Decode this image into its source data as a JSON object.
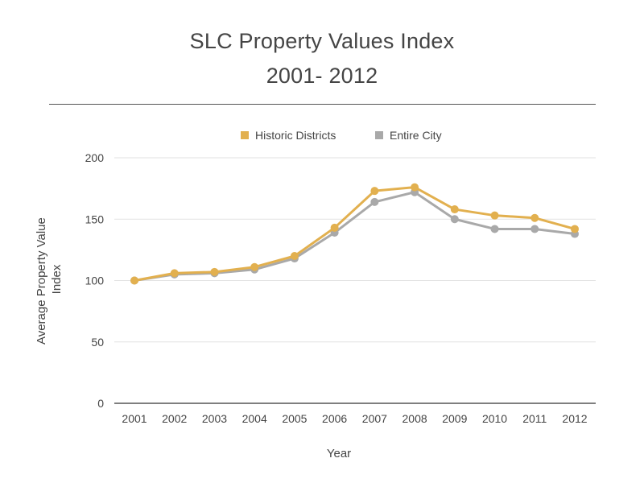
{
  "title": {
    "line1": "SLC Property Values Index",
    "line2": "2001- 2012"
  },
  "chart_data": {
    "type": "line",
    "title": "SLC Property Values Index 2001- 2012",
    "xlabel": "Year",
    "ylabel": "Average Property Value Index",
    "ylabel_lines": [
      "Average Property Value",
      "Index"
    ],
    "categories": [
      "2001",
      "2002",
      "2003",
      "2004",
      "2005",
      "2006",
      "2007",
      "2008",
      "2009",
      "2010",
      "2011",
      "2012"
    ],
    "series": [
      {
        "name": "Historic Districts",
        "color": "#E2B04F",
        "values": [
          100,
          106,
          107,
          111,
          120,
          143,
          173,
          176,
          158,
          153,
          151,
          142
        ]
      },
      {
        "name": "Entire City",
        "color": "#A9A9A9",
        "values": [
          100,
          105,
          106,
          109,
          118,
          139,
          164,
          172,
          150,
          142,
          142,
          138
        ]
      }
    ],
    "ylim": [
      0,
      200
    ],
    "yticks": [
      "0",
      "50",
      "100",
      "150",
      "200"
    ],
    "grid": true,
    "legend_position": "top-center"
  }
}
